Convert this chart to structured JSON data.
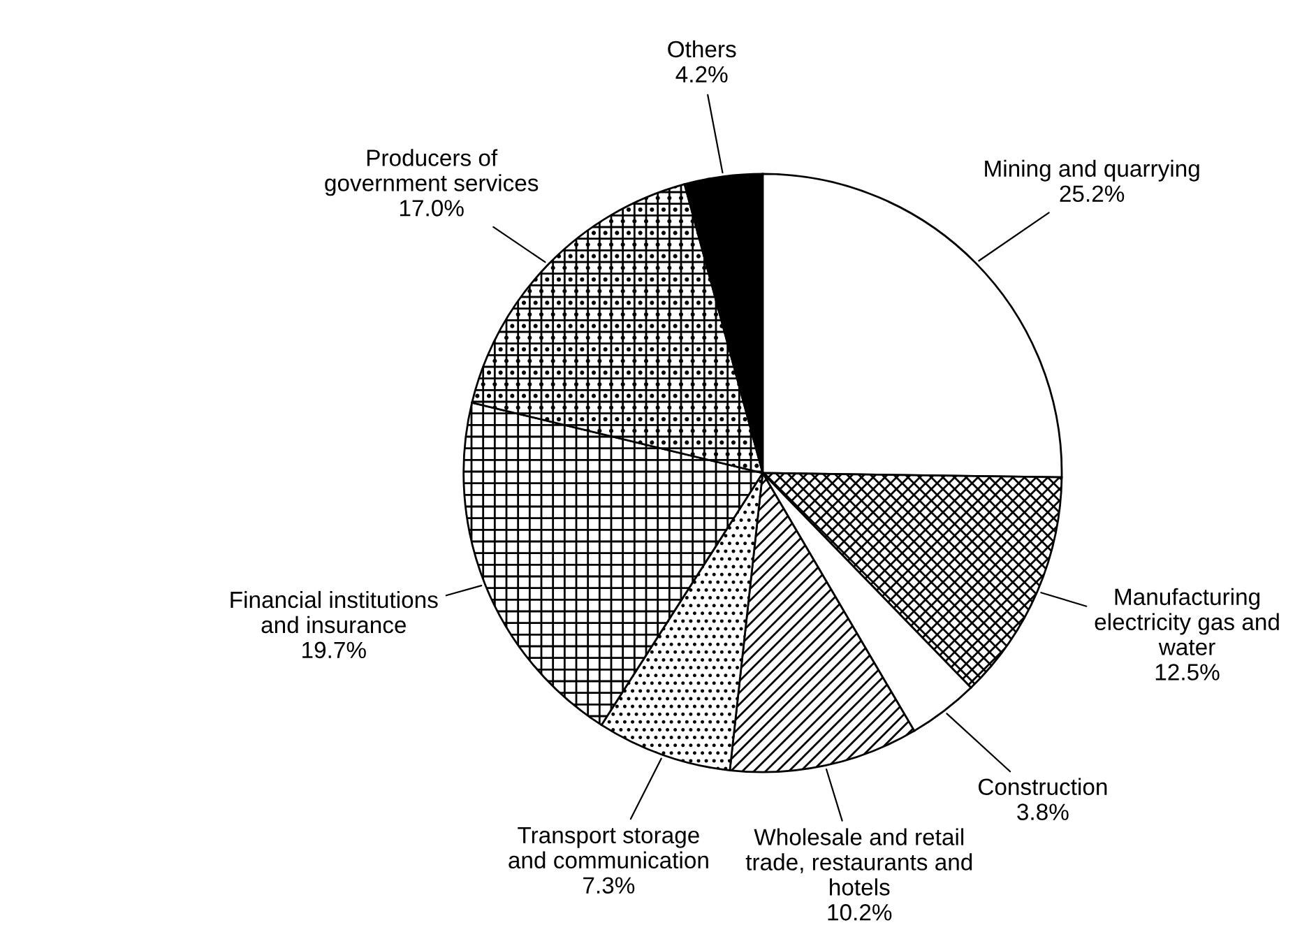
{
  "chart_data": {
    "type": "pie",
    "categories": [
      "Mining and quarrying",
      "Manufacturing\nelectricity gas and\nwater",
      "Construction",
      "Wholesale and retail\ntrade, restaurants and\nhotels",
      "Transport storage\nand communication",
      "Financial institutions\nand insurance",
      "Producers of\ngovernment services",
      "Others"
    ],
    "values": [
      25.2,
      12.5,
      3.8,
      10.2,
      7.3,
      19.7,
      17.0,
      4.2
    ],
    "value_labels": [
      "25.2%",
      "12.5%",
      "3.8%",
      "10.2%",
      "7.3%",
      "19.7%",
      "17.0%",
      "4.2%"
    ],
    "colors": [
      "#ffffff",
      "#ffffff",
      "#ffffff",
      "#ffffff",
      "#ffffff",
      "#ffffff",
      "#ffffff",
      "#000000"
    ]
  }
}
